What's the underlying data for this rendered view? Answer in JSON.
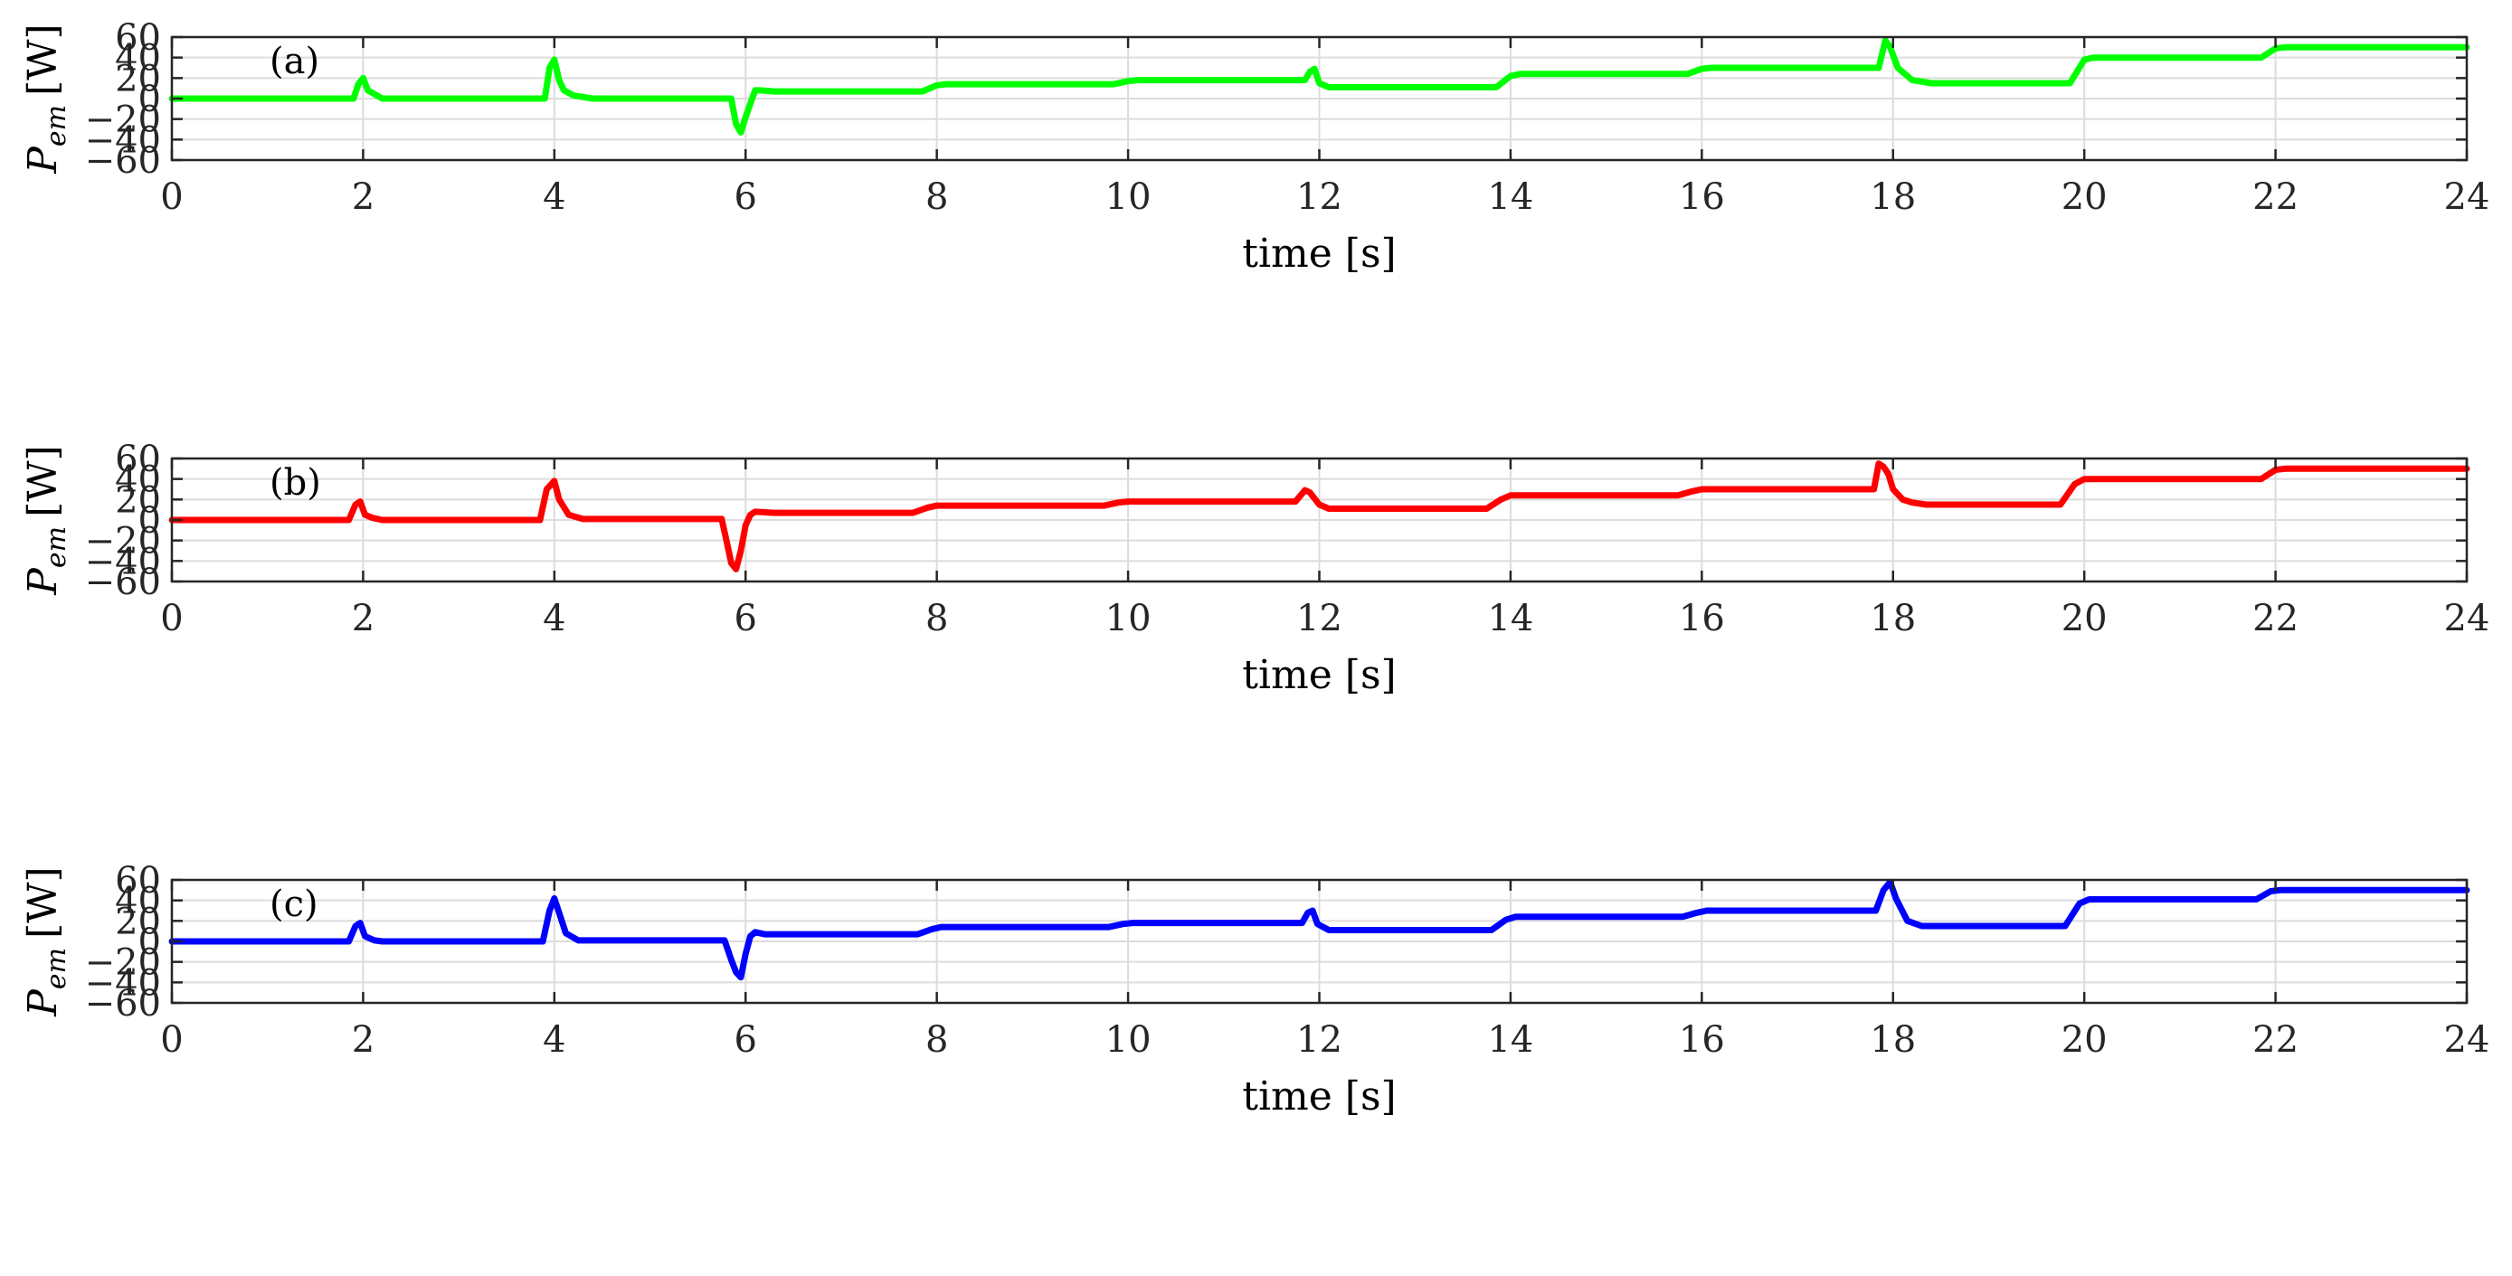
{
  "chart_data": [
    {
      "type": "line",
      "panel_label": "(a)",
      "ylabel": "P_em [W]",
      "ylabel_main": "P",
      "ylabel_sub": "em",
      "ylabel_unit": "[W]",
      "xlabel": "time [s]",
      "xlim": [
        0,
        24
      ],
      "ylim": [
        -60,
        60
      ],
      "xticks": [
        "0",
        "2",
        "4",
        "6",
        "8",
        "10",
        "12",
        "14",
        "16",
        "18",
        "20",
        "22",
        "24"
      ],
      "yticks": [
        "60",
        "40",
        "20",
        "0",
        "−20",
        "−40",
        "−60"
      ],
      "grid": true,
      "color": "#00ff00",
      "series": [
        {
          "x": [
            0,
            1.9,
            1.95,
            2.0,
            2.05,
            2.2,
            3.9,
            3.95,
            4.0,
            4.05,
            4.1,
            4.2,
            4.4,
            5.85,
            5.9,
            5.95,
            6.0,
            6.05,
            6.1,
            6.15,
            6.3,
            7.85,
            8.0,
            8.1,
            9.85,
            10.0,
            10.1,
            11.85,
            11.9,
            11.95,
            12.0,
            12.1,
            13.85,
            14.0,
            14.1,
            15.85,
            16.0,
            16.1,
            17.85,
            17.92,
            17.97,
            18.05,
            18.2,
            18.4,
            19.85,
            20.0,
            20.1,
            21.85,
            22.0,
            22.1,
            24.0
          ],
          "y": [
            0,
            0,
            14,
            20,
            8,
            0,
            0,
            30,
            38,
            18,
            8,
            3,
            0,
            0,
            -25,
            -33,
            -18,
            -5,
            8,
            8,
            7,
            7,
            13,
            14,
            14,
            17,
            18,
            18,
            26,
            29,
            15,
            11,
            11,
            22,
            24,
            24,
            29,
            30,
            30,
            57,
            50,
            30,
            18,
            15,
            15,
            38,
            40,
            40,
            49,
            50,
            50
          ]
        }
      ]
    },
    {
      "type": "line",
      "panel_label": "(b)",
      "ylabel": "P_em [W]",
      "ylabel_main": "P",
      "ylabel_sub": "em",
      "ylabel_unit": "[W]",
      "xlabel": "time [s]",
      "xlim": [
        0,
        24
      ],
      "ylim": [
        -60,
        60
      ],
      "xticks": [
        "0",
        "2",
        "4",
        "6",
        "8",
        "10",
        "12",
        "14",
        "16",
        "18",
        "20",
        "22",
        "24"
      ],
      "yticks": [
        "60",
        "40",
        "20",
        "0",
        "−20",
        "−40",
        "−60"
      ],
      "grid": true,
      "color": "#ff0000",
      "series": [
        {
          "x": [
            0,
            1.85,
            1.92,
            1.97,
            2.02,
            2.1,
            2.2,
            3.85,
            3.92,
            4.0,
            4.05,
            4.15,
            4.3,
            5.75,
            5.8,
            5.85,
            5.9,
            5.95,
            6.0,
            6.05,
            6.1,
            6.3,
            7.75,
            7.9,
            8.0,
            9.75,
            9.9,
            10.0,
            11.75,
            11.85,
            11.9,
            12.0,
            12.1,
            13.75,
            13.9,
            14.0,
            15.75,
            15.9,
            16.0,
            17.8,
            17.85,
            17.9,
            17.95,
            18.0,
            18.1,
            18.2,
            18.35,
            19.75,
            19.9,
            20.0,
            21.85,
            22.0,
            22.1,
            24.0
          ],
          "y": [
            0,
            0,
            15,
            18,
            5,
            2,
            0,
            0,
            30,
            38,
            20,
            5,
            1,
            1,
            -20,
            -42,
            -48,
            -30,
            -5,
            5,
            8,
            7,
            7,
            12,
            14,
            14,
            17,
            18,
            18,
            29,
            27,
            15,
            11,
            11,
            20,
            24,
            24,
            28,
            30,
            30,
            55,
            52,
            45,
            30,
            20,
            17,
            15,
            15,
            35,
            40,
            40,
            49,
            50,
            50
          ]
        }
      ]
    },
    {
      "type": "line",
      "panel_label": "(c)",
      "ylabel": "P_em [W]",
      "ylabel_main": "P",
      "ylabel_sub": "em",
      "ylabel_unit": "[W]",
      "xlabel": "time [s]",
      "xlim": [
        0,
        24
      ],
      "ylim": [
        -60,
        60
      ],
      "xticks": [
        "0",
        "2",
        "4",
        "6",
        "8",
        "10",
        "12",
        "14",
        "16",
        "18",
        "20",
        "22",
        "24"
      ],
      "yticks": [
        "60",
        "40",
        "20",
        "0",
        "−20",
        "−40",
        "−60"
      ],
      "grid": true,
      "color": "#0000ff",
      "series": [
        {
          "x": [
            0,
            1.85,
            1.92,
            1.97,
            2.02,
            2.12,
            2.2,
            3.88,
            3.95,
            4.0,
            4.05,
            4.12,
            4.25,
            5.78,
            5.85,
            5.9,
            5.95,
            6.0,
            6.05,
            6.1,
            6.2,
            7.8,
            7.95,
            8.05,
            9.8,
            9.95,
            10.05,
            11.82,
            11.88,
            11.93,
            11.98,
            12.1,
            13.8,
            13.95,
            14.05,
            15.8,
            15.95,
            16.05,
            17.82,
            17.9,
            17.97,
            18.03,
            18.15,
            18.3,
            19.8,
            19.95,
            20.05,
            21.8,
            21.95,
            22.05,
            24.0
          ],
          "y": [
            0,
            0,
            15,
            18,
            5,
            1,
            0,
            0,
            30,
            42,
            28,
            8,
            1,
            1,
            -18,
            -30,
            -35,
            -12,
            5,
            9,
            7,
            7,
            12,
            14,
            14,
            17,
            18,
            18,
            28,
            30,
            17,
            11,
            11,
            21,
            24,
            24,
            28,
            30,
            30,
            50,
            58,
            42,
            20,
            15,
            15,
            37,
            41,
            41,
            49,
            50,
            50
          ]
        }
      ]
    }
  ]
}
